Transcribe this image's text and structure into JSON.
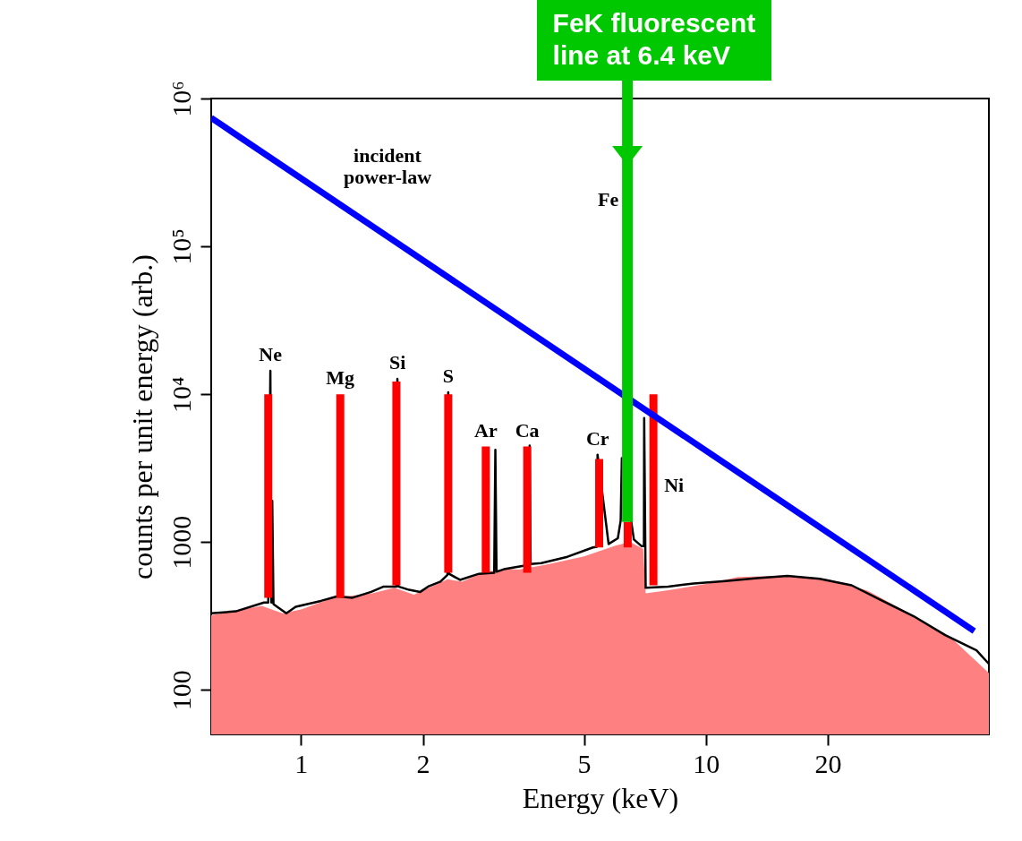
{
  "chart_data": {
    "type": "line",
    "xlabel": "Energy (keV)",
    "ylabel": "counts per unit energy (arb.)",
    "log": "xy",
    "xlim": [
      0.6,
      50
    ],
    "xticks": [
      1,
      2,
      5,
      10,
      20
    ],
    "ylim": [
      50,
      1000000
    ],
    "yticks": [
      100,
      1000,
      {
        "value": 10000,
        "label": "10⁴"
      },
      {
        "value": 100000,
        "label": "10⁵"
      },
      {
        "value": 1000000,
        "label": "10⁶"
      }
    ],
    "grid": false,
    "series": [
      {
        "type": "area",
        "color": "#ff8080",
        "x": [
          0.6,
          0.8,
          0.9,
          1.0,
          1.2,
          1.5,
          1.7,
          1.9,
          2.1,
          2.3,
          2.5,
          2.8,
          3.2,
          3.45,
          4.0,
          5.0,
          6.0,
          6.5,
          7.0,
          7.1,
          8,
          10,
          12,
          15,
          18,
          20,
          25,
          30,
          40,
          50
        ],
        "values": [
          320,
          370,
          330,
          350,
          420,
          450,
          490,
          440,
          500,
          560,
          540,
          620,
          660,
          650,
          700,
          800,
          950,
          1000,
          900,
          450,
          470,
          520,
          580,
          590,
          580,
          560,
          470,
          360,
          230,
          130
        ]
      },
      {
        "color": "#000000",
        "x": [
          0.6,
          0.69,
          0.81,
          0.83,
          0.84,
          0.845,
          0.849,
          0.855,
          0.873,
          0.92,
          0.97,
          1.12,
          1.23,
          1.34,
          1.49,
          1.6,
          1.72,
          1.73,
          1.74,
          1.85,
          1.97,
          2.06,
          2.21,
          2.3,
          2.31,
          2.32,
          2.47,
          2.75,
          3.0,
          3.02,
          3.04,
          3.17,
          3.65,
          3.67,
          3.69,
          3.92,
          4.55,
          5.26,
          5.38,
          5.4,
          5.42,
          5.75,
          6.06,
          6.16,
          6.2,
          6.64,
          6.93,
          7.03,
          7.04,
          7.1,
          8.07,
          9.33,
          11.2,
          13.4,
          15.9,
          19.1,
          22.9,
          27.3,
          32.6,
          39,
          46.6,
          50
        ],
        "values": [
          330,
          340,
          390,
          390,
          14400,
          390,
          1900,
          380,
          365,
          330,
          365,
          400,
          430,
          420,
          460,
          500,
          500,
          12700,
          500,
          475,
          460,
          500,
          540,
          600,
          10300,
          610,
          555,
          610,
          620,
          4200,
          630,
          655,
          700,
          4500,
          710,
          720,
          795,
          920,
          930,
          3900,
          null,
          970,
          1060,
          1400,
          3700,
          1040,
          940,
          940,
          6900,
          490,
          500,
          525,
          545,
          570,
          590,
          565,
          510,
          400,
          315,
          235,
          185,
          150
        ]
      },
      {
        "type": "bar",
        "color": "#ff0000",
        "x": [
          0.83,
          1.25,
          1.72,
          2.31,
          2.86,
          3.62,
          5.45,
          6.41,
          7.42
        ],
        "base": [
          420,
          420,
          510,
          620,
          620,
          620,
          920,
          920,
          510
        ],
        "values": [
          9580,
          9580,
          11690,
          9380,
          3810,
          3810,
          2720,
          450,
          9490
        ]
      },
      {
        "type": "line",
        "name": "incident power-law",
        "color": "#0000ff",
        "x": [
          0.6,
          46
        ],
        "values": [
          740000,
          250
        ]
      }
    ],
    "annotations": [
      {
        "text": "FeK fluorescent\nline at 6.4 keV",
        "x": 6.4,
        "y": 1370
      },
      {
        "text": "Ne",
        "x": 0.84,
        "y": 14400
      },
      {
        "text": "Mg",
        "x": 1.25,
        "y": 10000
      },
      {
        "text": "Si",
        "x": 1.73,
        "y": 12700
      },
      {
        "text": "S",
        "x": 2.31,
        "y": 10300
      },
      {
        "text": "Ar",
        "x": 2.86,
        "y": 4430
      },
      {
        "text": "Ca",
        "x": 3.62,
        "y": 4430
      },
      {
        "text": "Cr",
        "x": 5.4,
        "y": 3900
      },
      "Fe",
      {
        "text": "Ni",
        "x": 7.42,
        "y": 2420
      }
    ]
  }
}
